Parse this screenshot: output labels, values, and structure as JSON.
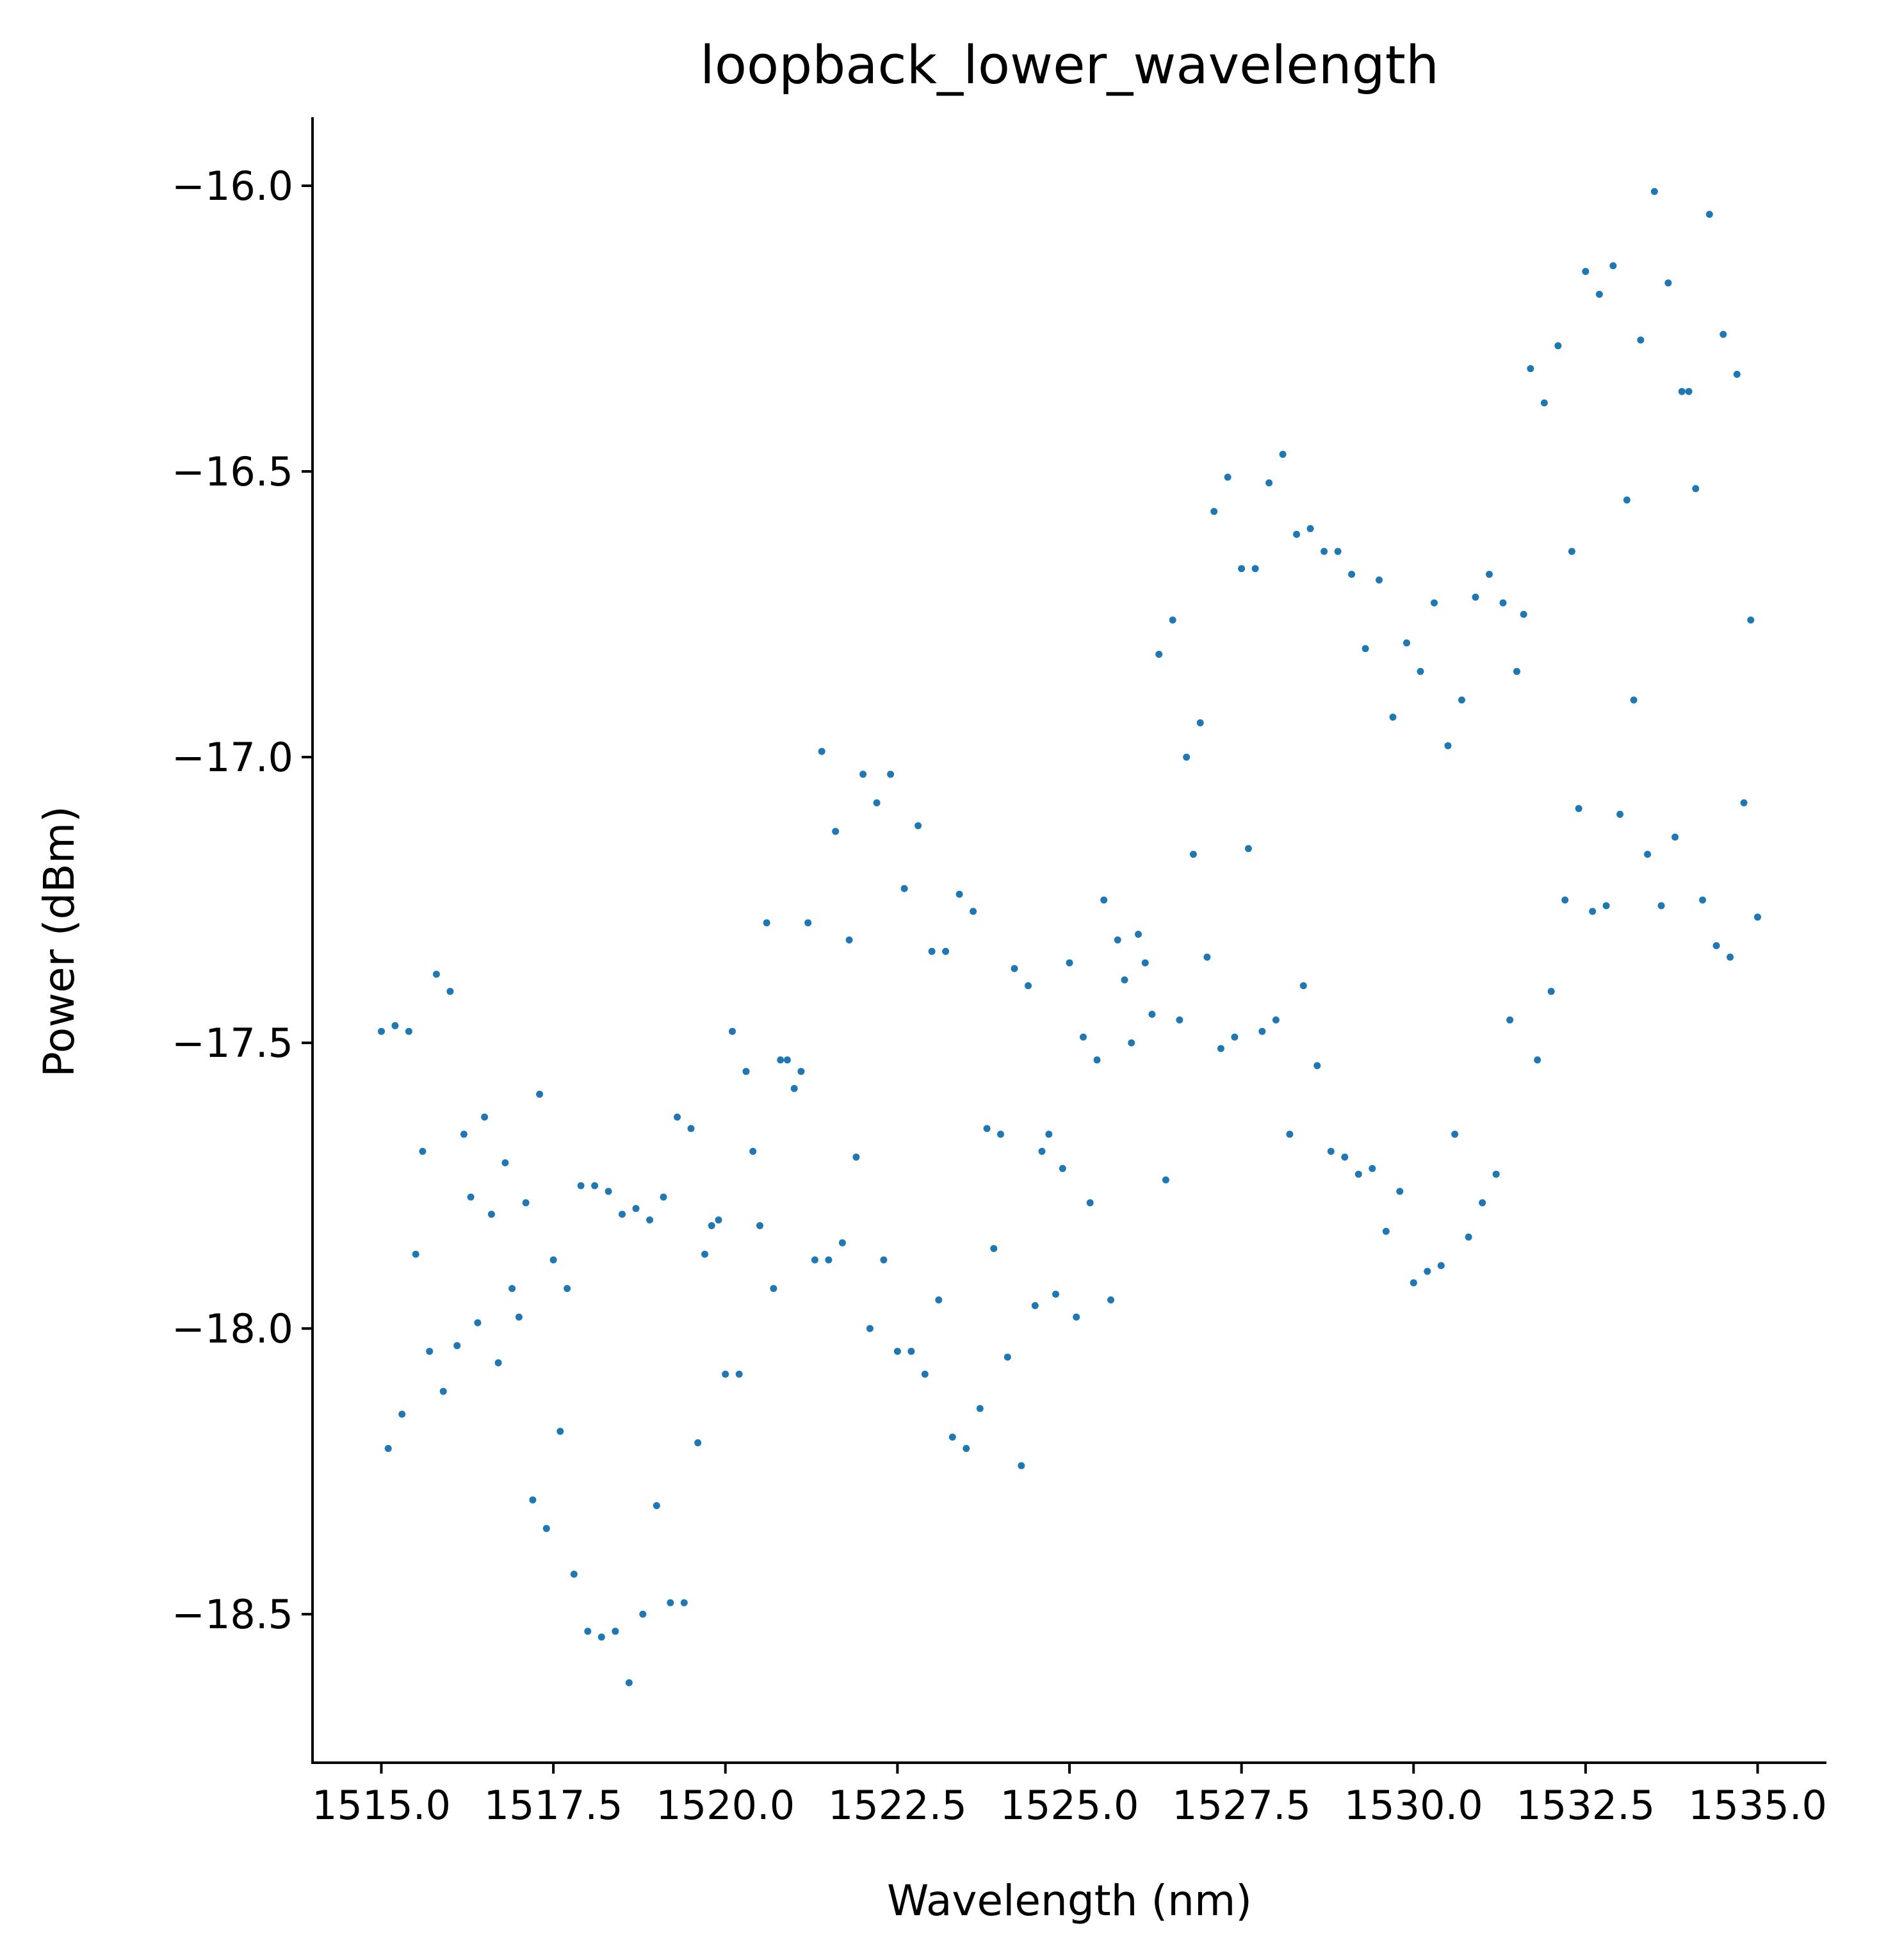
{
  "chart_data": {
    "type": "scatter",
    "title": "loopback_lower_wavelength",
    "xlabel": "Wavelength (nm)",
    "ylabel": "Power (dBm)",
    "xlim": [
      1514.0,
      1536.0
    ],
    "ylim": [
      -18.76,
      -15.88
    ],
    "xticks": [
      1515.0,
      1517.5,
      1520.0,
      1522.5,
      1525.0,
      1527.5,
      1530.0,
      1532.5,
      1535.0
    ],
    "xtick_labels": [
      "1515.0",
      "1517.5",
      "1520.0",
      "1522.5",
      "1525.0",
      "1527.5",
      "1530.0",
      "1532.5",
      "1535.0"
    ],
    "yticks": [
      -16.0,
      -16.5,
      -17.0,
      -17.5,
      -18.0,
      -18.5
    ],
    "ytick_labels": [
      "−16.0",
      "−16.5",
      "−17.0",
      "−17.5",
      "−18.0",
      "−18.5"
    ],
    "grid": false,
    "legend": "none",
    "marker_color": "#1f77b4",
    "series": [
      {
        "points": [
          [
            1515.0,
            -17.48
          ],
          [
            1515.1,
            -18.21
          ],
          [
            1515.2,
            -17.47
          ],
          [
            1515.3,
            -18.15
          ],
          [
            1515.4,
            -17.48
          ],
          [
            1515.5,
            -17.87
          ],
          [
            1515.6,
            -17.69
          ],
          [
            1515.7,
            -18.04
          ],
          [
            1515.8,
            -17.38
          ],
          [
            1515.9,
            -18.11
          ],
          [
            1516.0,
            -17.41
          ],
          [
            1516.1,
            -18.03
          ],
          [
            1516.2,
            -17.66
          ],
          [
            1516.3,
            -17.77
          ],
          [
            1516.4,
            -17.99
          ],
          [
            1516.5,
            -17.63
          ],
          [
            1516.6,
            -17.8
          ],
          [
            1516.7,
            -18.06
          ],
          [
            1516.8,
            -17.71
          ],
          [
            1516.9,
            -17.93
          ],
          [
            1517.0,
            -17.98
          ],
          [
            1517.1,
            -17.78
          ],
          [
            1517.2,
            -18.3
          ],
          [
            1517.3,
            -17.59
          ],
          [
            1517.4,
            -18.35
          ],
          [
            1517.5,
            -17.88
          ],
          [
            1517.6,
            -18.18
          ],
          [
            1517.7,
            -17.93
          ],
          [
            1517.8,
            -18.43
          ],
          [
            1517.9,
            -17.75
          ],
          [
            1518.0,
            -18.53
          ],
          [
            1518.1,
            -17.75
          ],
          [
            1518.2,
            -18.54
          ],
          [
            1518.3,
            -17.76
          ],
          [
            1518.4,
            -18.53
          ],
          [
            1518.5,
            -17.8
          ],
          [
            1518.6,
            -18.62
          ],
          [
            1518.7,
            -17.79
          ],
          [
            1518.8,
            -18.5
          ],
          [
            1518.9,
            -17.81
          ],
          [
            1519.0,
            -18.31
          ],
          [
            1519.1,
            -17.77
          ],
          [
            1519.2,
            -18.48
          ],
          [
            1519.3,
            -17.63
          ],
          [
            1519.4,
            -18.48
          ],
          [
            1519.5,
            -17.65
          ],
          [
            1519.6,
            -18.2
          ],
          [
            1519.7,
            -17.87
          ],
          [
            1519.8,
            -17.82
          ],
          [
            1519.9,
            -17.81
          ],
          [
            1520.0,
            -18.08
          ],
          [
            1520.1,
            -17.48
          ],
          [
            1520.2,
            -18.08
          ],
          [
            1520.3,
            -17.55
          ],
          [
            1520.4,
            -17.69
          ],
          [
            1520.5,
            -17.82
          ],
          [
            1520.6,
            -17.29
          ],
          [
            1520.7,
            -17.93
          ],
          [
            1520.8,
            -17.53
          ],
          [
            1520.9,
            -17.53
          ],
          [
            1521.0,
            -17.58
          ],
          [
            1521.1,
            -17.55
          ],
          [
            1521.2,
            -17.29
          ],
          [
            1521.3,
            -17.88
          ],
          [
            1521.4,
            -16.99
          ],
          [
            1521.5,
            -17.88
          ],
          [
            1521.6,
            -17.13
          ],
          [
            1521.7,
            -17.85
          ],
          [
            1521.8,
            -17.32
          ],
          [
            1521.9,
            -17.7
          ],
          [
            1522.0,
            -17.03
          ],
          [
            1522.1,
            -18.0
          ],
          [
            1522.2,
            -17.08
          ],
          [
            1522.3,
            -17.88
          ],
          [
            1522.4,
            -17.03
          ],
          [
            1522.5,
            -18.04
          ],
          [
            1522.6,
            -17.23
          ],
          [
            1522.7,
            -18.04
          ],
          [
            1522.8,
            -17.12
          ],
          [
            1522.9,
            -18.08
          ],
          [
            1523.0,
            -17.34
          ],
          [
            1523.1,
            -17.95
          ],
          [
            1523.2,
            -17.34
          ],
          [
            1523.3,
            -18.19
          ],
          [
            1523.4,
            -17.24
          ],
          [
            1523.5,
            -18.21
          ],
          [
            1523.6,
            -17.27
          ],
          [
            1523.7,
            -18.14
          ],
          [
            1523.8,
            -17.65
          ],
          [
            1523.9,
            -17.86
          ],
          [
            1524.0,
            -17.66
          ],
          [
            1524.1,
            -18.05
          ],
          [
            1524.2,
            -17.37
          ],
          [
            1524.3,
            -18.24
          ],
          [
            1524.4,
            -17.4
          ],
          [
            1524.5,
            -17.96
          ],
          [
            1524.6,
            -17.69
          ],
          [
            1524.7,
            -17.66
          ],
          [
            1524.8,
            -17.94
          ],
          [
            1524.9,
            -17.72
          ],
          [
            1525.0,
            -17.36
          ],
          [
            1525.1,
            -17.98
          ],
          [
            1525.2,
            -17.49
          ],
          [
            1525.3,
            -17.78
          ],
          [
            1525.4,
            -17.53
          ],
          [
            1525.5,
            -17.25
          ],
          [
            1525.6,
            -17.95
          ],
          [
            1525.7,
            -17.32
          ],
          [
            1525.8,
            -17.39
          ],
          [
            1525.9,
            -17.5
          ],
          [
            1526.0,
            -17.31
          ],
          [
            1526.1,
            -17.36
          ],
          [
            1526.2,
            -17.45
          ],
          [
            1526.3,
            -16.82
          ],
          [
            1526.4,
            -17.74
          ],
          [
            1526.5,
            -16.76
          ],
          [
            1526.6,
            -17.46
          ],
          [
            1526.7,
            -17.0
          ],
          [
            1526.8,
            -17.17
          ],
          [
            1526.9,
            -16.94
          ],
          [
            1527.0,
            -17.35
          ],
          [
            1527.1,
            -16.57
          ],
          [
            1527.2,
            -17.51
          ],
          [
            1527.3,
            -16.51
          ],
          [
            1527.4,
            -17.49
          ],
          [
            1527.5,
            -16.67
          ],
          [
            1527.6,
            -17.16
          ],
          [
            1527.7,
            -16.67
          ],
          [
            1527.8,
            -17.48
          ],
          [
            1527.9,
            -16.52
          ],
          [
            1528.0,
            -17.46
          ],
          [
            1528.1,
            -16.47
          ],
          [
            1528.2,
            -17.66
          ],
          [
            1528.3,
            -16.61
          ],
          [
            1528.4,
            -17.4
          ],
          [
            1528.5,
            -16.6
          ],
          [
            1528.6,
            -17.54
          ],
          [
            1528.7,
            -16.64
          ],
          [
            1528.8,
            -17.69
          ],
          [
            1528.9,
            -16.64
          ],
          [
            1529.0,
            -17.7
          ],
          [
            1529.1,
            -16.68
          ],
          [
            1529.2,
            -17.73
          ],
          [
            1529.3,
            -16.81
          ],
          [
            1529.4,
            -17.72
          ],
          [
            1529.5,
            -16.69
          ],
          [
            1529.6,
            -17.83
          ],
          [
            1529.7,
            -16.93
          ],
          [
            1529.8,
            -17.76
          ],
          [
            1529.9,
            -16.8
          ],
          [
            1530.0,
            -17.92
          ],
          [
            1530.1,
            -16.85
          ],
          [
            1530.2,
            -17.9
          ],
          [
            1530.3,
            -16.73
          ],
          [
            1530.4,
            -17.89
          ],
          [
            1530.5,
            -16.98
          ],
          [
            1530.6,
            -17.66
          ],
          [
            1530.7,
            -16.9
          ],
          [
            1530.8,
            -17.84
          ],
          [
            1530.9,
            -16.72
          ],
          [
            1531.0,
            -17.78
          ],
          [
            1531.1,
            -16.68
          ],
          [
            1531.2,
            -17.73
          ],
          [
            1531.3,
            -16.73
          ],
          [
            1531.4,
            -17.46
          ],
          [
            1531.5,
            -16.85
          ],
          [
            1531.6,
            -16.75
          ],
          [
            1531.7,
            -16.32
          ],
          [
            1531.8,
            -17.53
          ],
          [
            1531.9,
            -16.38
          ],
          [
            1532.0,
            -17.41
          ],
          [
            1532.1,
            -16.28
          ],
          [
            1532.2,
            -17.25
          ],
          [
            1532.3,
            -16.64
          ],
          [
            1532.4,
            -17.09
          ],
          [
            1532.5,
            -16.15
          ],
          [
            1532.6,
            -17.27
          ],
          [
            1532.7,
            -16.19
          ],
          [
            1532.8,
            -17.26
          ],
          [
            1532.9,
            -16.14
          ],
          [
            1533.0,
            -17.1
          ],
          [
            1533.1,
            -16.55
          ],
          [
            1533.2,
            -16.9
          ],
          [
            1533.3,
            -16.27
          ],
          [
            1533.4,
            -17.17
          ],
          [
            1533.5,
            -16.01
          ],
          [
            1533.6,
            -17.26
          ],
          [
            1533.7,
            -16.17
          ],
          [
            1533.8,
            -17.14
          ],
          [
            1533.9,
            -16.36
          ],
          [
            1534.0,
            -16.36
          ],
          [
            1534.1,
            -16.53
          ],
          [
            1534.2,
            -17.25
          ],
          [
            1534.3,
            -16.05
          ],
          [
            1534.4,
            -17.33
          ],
          [
            1534.5,
            -16.26
          ],
          [
            1534.6,
            -17.35
          ],
          [
            1534.7,
            -16.33
          ],
          [
            1534.8,
            -17.08
          ],
          [
            1534.9,
            -16.76
          ],
          [
            1535.0,
            -17.28
          ]
        ]
      }
    ]
  }
}
